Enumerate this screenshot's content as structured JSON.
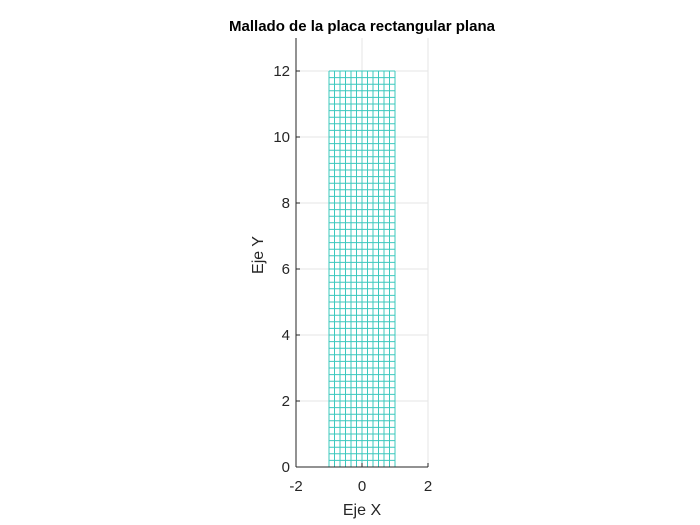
{
  "chart_data": {
    "type": "mesh",
    "title": "Mallado de la placa rectangular plana",
    "xlabel": "Eje X",
    "ylabel": "Eje Y",
    "xlim": [
      -2,
      2
    ],
    "ylim": [
      0,
      13
    ],
    "xticks": [
      -2,
      0,
      2
    ],
    "yticks": [
      0,
      2,
      4,
      6,
      8,
      10,
      12
    ],
    "xtick_labels": [
      "-2",
      "0",
      "2"
    ],
    "ytick_labels": [
      "0",
      "2",
      "4",
      "6",
      "8",
      "10",
      "12"
    ],
    "grid": true,
    "equal_aspect": true,
    "mesh": {
      "x_range": [
        -1,
        1
      ],
      "y_range": [
        0,
        12
      ],
      "nx": 12,
      "ny": 60,
      "color": "#3cc8be"
    },
    "colors": {
      "axis": "#262626",
      "grid": "#e6e6e6"
    }
  }
}
